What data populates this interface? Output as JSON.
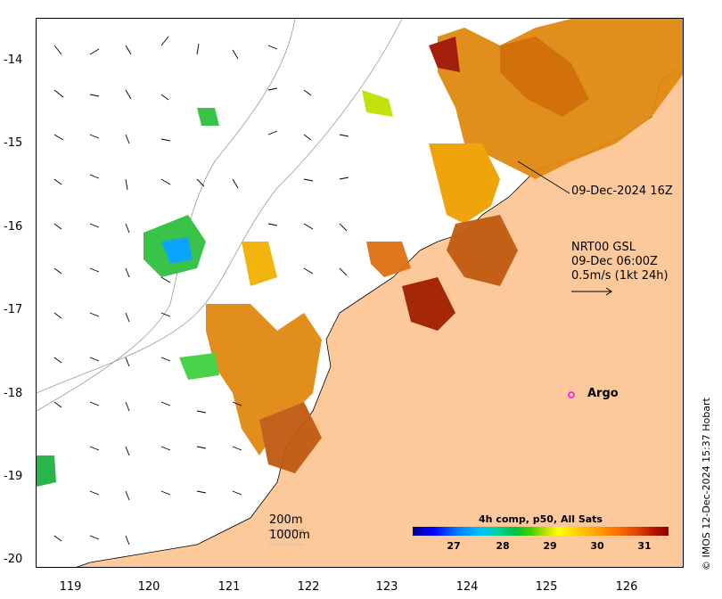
{
  "map": {
    "y_axis_labels": [
      "-14",
      "-15",
      "-16",
      "-17",
      "-18",
      "-19",
      "-20"
    ],
    "x_axis_labels": [
      "119",
      "120",
      "121",
      "122",
      "123",
      "124",
      "125",
      "126"
    ],
    "satellite_time_label": "09-Dec-2024 16Z",
    "current_info": {
      "line1": "NRT00 GSL",
      "line2": "09-Dec 06:00Z",
      "line3": "0.5m/s (1kt 24h)"
    },
    "argo_label": "Argo",
    "bathymetry_labels": {
      "shallow": "200m",
      "deep": "1000m"
    },
    "colorbar": {
      "title": "4h comp, p50, All Sats",
      "ticks": [
        "27",
        "28",
        "29",
        "30",
        "31"
      ]
    },
    "credit": "© IMOS 12-Dec-2024 15:37 Hobart",
    "colors": {
      "land": "#fdc99b",
      "argo_marker": "#ff00ff",
      "coastline": "#000000"
    }
  }
}
